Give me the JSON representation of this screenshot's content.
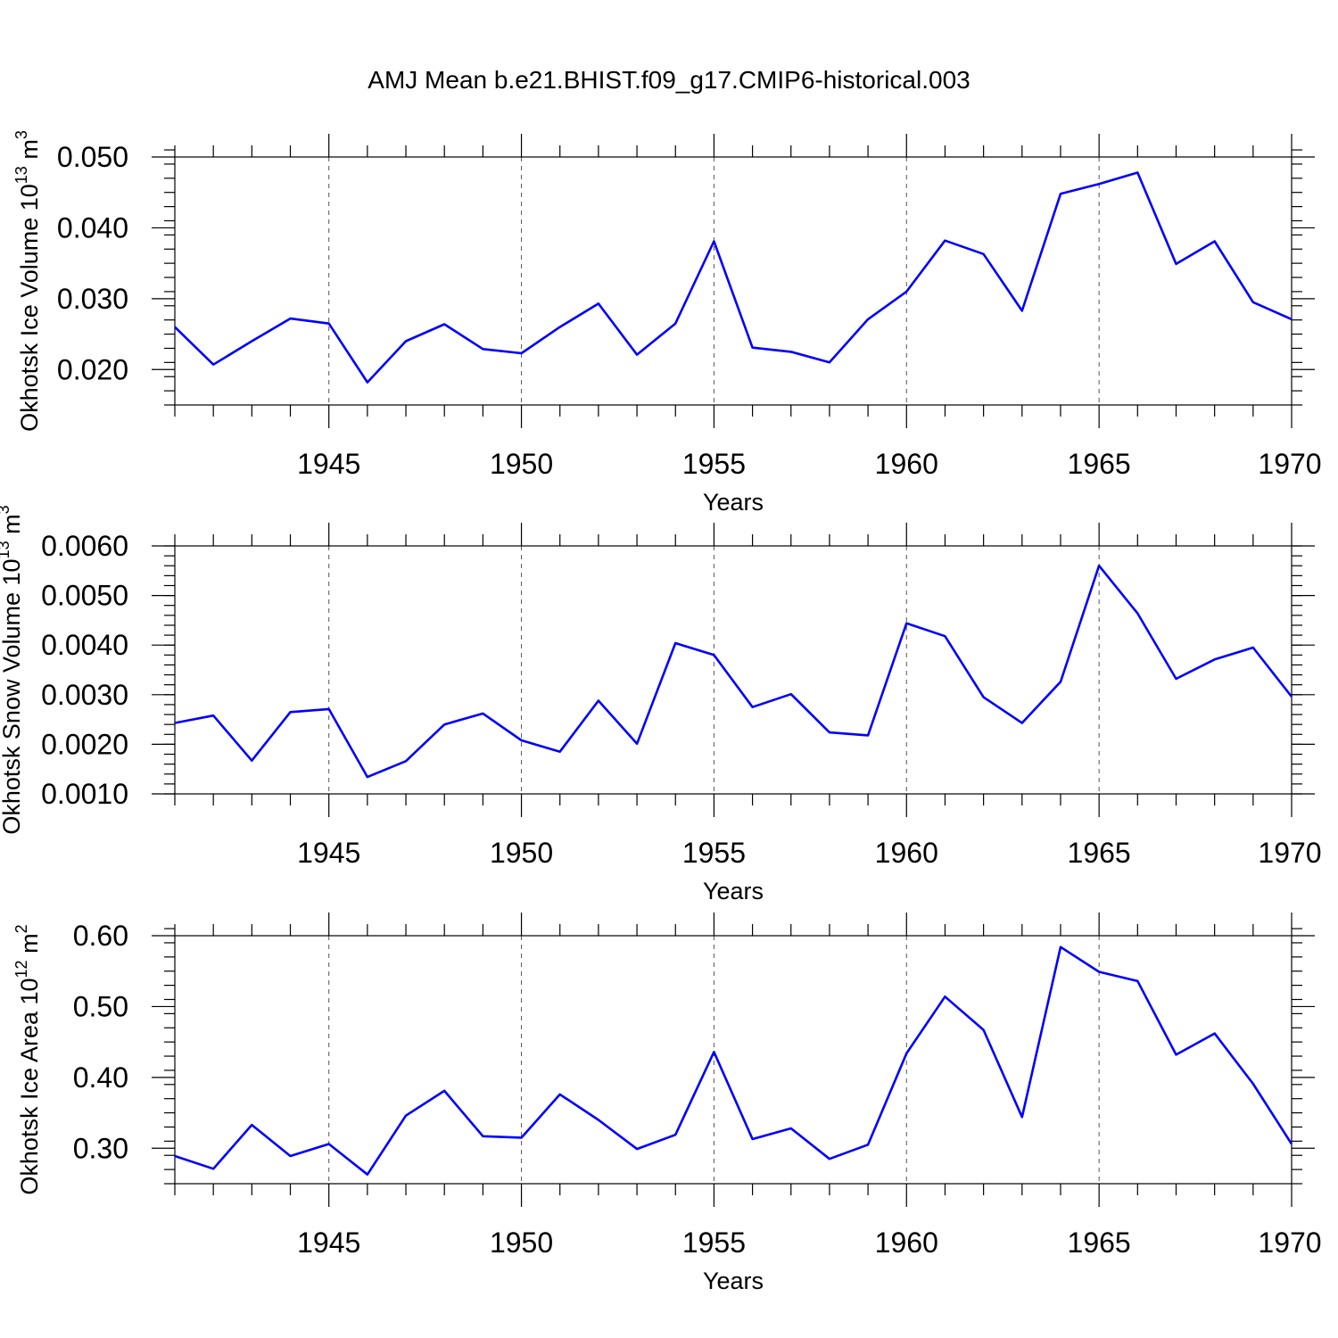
{
  "title": "AMJ Mean b.e21.BHIST.f09_g17.CMIP6-historical.003",
  "chart_data": [
    {
      "type": "line",
      "xlabel": "Years",
      "ylabel_prefix": "Okhotsk Ice Volume 10",
      "ylabel_exponent": "13",
      "ylabel_unit": "m",
      "ylabel_unit_exponent": "3",
      "xlim": [
        1941,
        1970
      ],
      "ylim": [
        0.015,
        0.05
      ],
      "ytick_step": 0.01,
      "yminor_step": 0.002,
      "ytick_decimals": 3,
      "ytick_labels": [
        "0.020",
        "0.030",
        "0.040",
        "0.050"
      ],
      "xtick_labels": [
        "1945",
        "1950",
        "1955",
        "1960",
        "1965",
        "1970"
      ],
      "grid": "dashed vertical at major x ticks",
      "line_color": "#0000ff",
      "x": [
        1941,
        1942,
        1943,
        1944,
        1945,
        1946,
        1947,
        1948,
        1949,
        1950,
        1951,
        1952,
        1953,
        1954,
        1955,
        1956,
        1957,
        1958,
        1959,
        1960,
        1961,
        1962,
        1963,
        1964,
        1965,
        1966,
        1967,
        1968,
        1969,
        1970
      ],
      "y": [
        0.026,
        0.0207,
        0.024,
        0.0272,
        0.0265,
        0.0182,
        0.024,
        0.0264,
        0.0229,
        0.0223,
        0.026,
        0.0293,
        0.0221,
        0.0265,
        0.0381,
        0.0231,
        0.0225,
        0.021,
        0.0271,
        0.031,
        0.0382,
        0.0363,
        0.0283,
        0.0448,
        0.0462,
        0.0478,
        0.0349,
        0.0381,
        0.0295,
        0.0271
      ]
    },
    {
      "type": "line",
      "xlabel": "Years",
      "ylabel_prefix": "Okhotsk Snow Volume 10",
      "ylabel_exponent": "13",
      "ylabel_unit": "m",
      "ylabel_unit_exponent": "3",
      "xlim": [
        1941,
        1970
      ],
      "ylim": [
        0.001,
        0.006
      ],
      "ytick_step": 0.001,
      "yminor_step": 0.0002,
      "ytick_decimals": 4,
      "ytick_labels": [
        "0.0010",
        "0.0020",
        "0.0030",
        "0.0040",
        "0.0050"
      ],
      "xtick_labels": [
        "1945",
        "1950",
        "1955",
        "1960",
        "1965",
        "1970"
      ],
      "grid": "dashed vertical at major x ticks",
      "line_color": "#0000ff",
      "x": [
        1941,
        1942,
        1943,
        1944,
        1945,
        1946,
        1947,
        1948,
        1949,
        1950,
        1951,
        1952,
        1953,
        1954,
        1955,
        1956,
        1957,
        1958,
        1959,
        1960,
        1961,
        1962,
        1963,
        1964,
        1965,
        1966,
        1967,
        1968,
        1969,
        1970
      ],
      "y": [
        0.00243,
        0.00258,
        0.00167,
        0.00265,
        0.00271,
        0.00134,
        0.00166,
        0.0024,
        0.00262,
        0.00208,
        0.00185,
        0.00288,
        0.00201,
        0.00404,
        0.0038,
        0.00275,
        0.00301,
        0.00224,
        0.00218,
        0.00444,
        0.00418,
        0.00295,
        0.00243,
        0.00326,
        0.0056,
        0.00464,
        0.00332,
        0.00371,
        0.00395,
        0.00296
      ]
    },
    {
      "type": "line",
      "xlabel": "Years",
      "ylabel_prefix": "Okhotsk Ice Area 10",
      "ylabel_exponent": "12",
      "ylabel_unit": "m",
      "ylabel_unit_exponent": "2",
      "xlim": [
        1941,
        1970
      ],
      "ylim": [
        0.25,
        0.6
      ],
      "ytick_step": 0.1,
      "yminor_step": 0.02,
      "ytick_decimals": 2,
      "ytick_labels": [
        "0.30",
        "0.40",
        "0.50",
        "0.60"
      ],
      "xtick_labels": [
        "1945",
        "1950",
        "1955",
        "1960",
        "1965",
        "1970"
      ],
      "grid": "dashed vertical at major x ticks",
      "line_color": "#0000ff",
      "x": [
        1941,
        1942,
        1943,
        1944,
        1945,
        1946,
        1947,
        1948,
        1949,
        1950,
        1951,
        1952,
        1953,
        1954,
        1955,
        1956,
        1957,
        1958,
        1959,
        1960,
        1961,
        1962,
        1963,
        1964,
        1965,
        1966,
        1967,
        1968,
        1969,
        1970
      ],
      "y": [
        0.289,
        0.271,
        0.333,
        0.289,
        0.306,
        0.263,
        0.346,
        0.381,
        0.317,
        0.315,
        0.376,
        0.34,
        0.299,
        0.319,
        0.436,
        0.313,
        0.328,
        0.285,
        0.305,
        0.434,
        0.514,
        0.467,
        0.344,
        0.584,
        0.549,
        0.536,
        0.432,
        0.462,
        0.391,
        0.306
      ]
    }
  ]
}
